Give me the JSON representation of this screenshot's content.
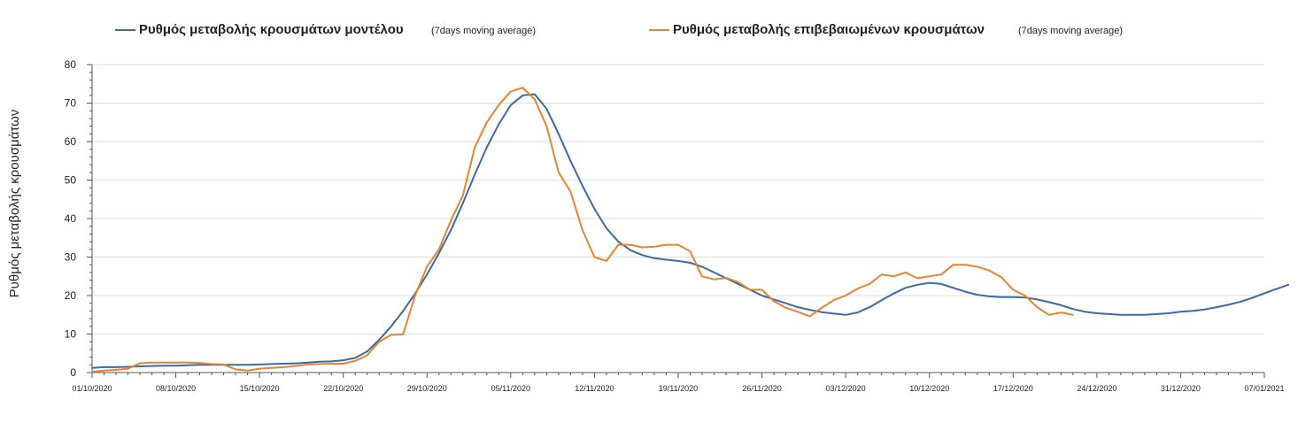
{
  "chart_data": {
    "type": "line",
    "title": "",
    "xlabel": "",
    "ylabel": "Ρυθμός μεταβολής κρουσμάτων",
    "ylim": [
      0,
      80
    ],
    "yticks": [
      0,
      10,
      20,
      30,
      40,
      50,
      60,
      70,
      80
    ],
    "grid": true,
    "legend_position": "top",
    "x_start": "01/10/2020",
    "x_end": "07/01/2021",
    "x_tick_labels": [
      "01/10/2020",
      "08/10/2020",
      "15/10/2020",
      "22/10/2020",
      "29/10/2020",
      "05/11/2020",
      "12/11/2020",
      "19/11/2020",
      "26/11/2020",
      "03/12/2020",
      "10/12/2020",
      "17/12/2020",
      "24/12/2020",
      "31/12/2020",
      "07/01/2021"
    ],
    "series": [
      {
        "name": "Ρυθμός μεταβολής κρουσμάτων μοντέλου",
        "note": "(7days moving average)",
        "color": "#3a6aa8",
        "values": [
          1.2,
          1.4,
          1.4,
          1.5,
          1.6,
          1.7,
          1.8,
          1.8,
          1.9,
          2.0,
          2.0,
          2.0,
          2.0,
          2.0,
          2.1,
          2.2,
          2.3,
          2.4,
          2.6,
          2.8,
          2.9,
          3.2,
          3.8,
          5.5,
          8.5,
          12.0,
          16.0,
          20.5,
          25.5,
          31.0,
          37.0,
          44.0,
          51.5,
          58.5,
          64.5,
          69.5,
          72.0,
          72.3,
          68.5,
          62.0,
          55.0,
          48.5,
          42.5,
          37.5,
          34.0,
          31.8,
          30.5,
          29.7,
          29.3,
          29.0,
          28.5,
          27.5,
          26.0,
          24.5,
          23.0,
          21.5,
          20.0,
          19.0,
          18.0,
          17.0,
          16.3,
          15.7,
          15.3,
          15.0,
          15.6,
          17.0,
          18.8,
          20.5,
          22.0,
          22.8,
          23.3,
          23.0,
          22.0,
          21.0,
          20.2,
          19.8,
          19.6,
          19.6,
          19.5,
          19.0,
          18.3,
          17.5,
          16.5,
          15.8,
          15.4,
          15.2,
          15.0,
          15.0,
          15.0,
          15.2,
          15.4,
          15.8,
          16.0,
          16.4,
          17.0,
          17.6,
          18.4,
          19.4,
          20.6,
          21.7,
          22.8
        ]
      },
      {
        "name": "Ρυθμός μεταβολής επιβεβαιωμένων κρουσμάτων",
        "note": "(7days moving average)",
        "color": "#e8832e",
        "values": [
          0.2,
          0.5,
          0.7,
          1.0,
          2.4,
          2.6,
          2.6,
          2.6,
          2.6,
          2.5,
          2.2,
          2.1,
          0.8,
          0.5,
          1.0,
          1.2,
          1.4,
          1.7,
          2.1,
          2.2,
          2.3,
          2.3,
          3.0,
          4.5,
          8.0,
          9.8,
          9.9,
          20.0,
          27.5,
          32.0,
          39.5,
          46.0,
          58.5,
          65.0,
          69.5,
          73.0,
          74.0,
          71.0,
          64.0,
          52.0,
          47.0,
          37.0,
          30.0,
          29.0,
          33.2,
          33.2,
          32.5,
          32.7,
          33.2,
          33.2,
          31.5,
          25.0,
          24.2,
          24.6,
          23.5,
          21.5,
          21.5,
          18.5,
          16.8,
          15.8,
          14.6,
          16.8,
          18.8,
          20.0,
          21.8,
          23.0,
          25.5,
          25.0,
          26.0,
          24.5,
          25.0,
          25.5,
          28.0,
          28.0,
          27.5,
          26.5,
          24.8,
          21.5,
          20.0,
          17.0,
          15.0,
          15.6,
          15.0
        ]
      }
    ]
  }
}
